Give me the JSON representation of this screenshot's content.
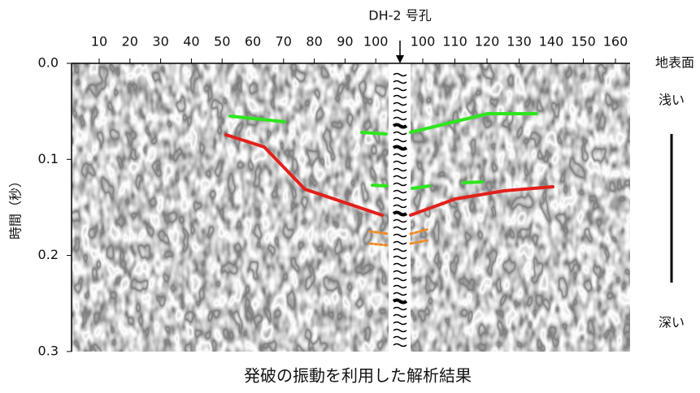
{
  "borehole_label": "DH-2 号孔",
  "x_ticks_left": [
    "10",
    "20",
    "30",
    "40",
    "50",
    "60",
    "70",
    "80",
    "90",
    "100"
  ],
  "x_ticks_right": [
    "100",
    "110",
    "120",
    "130",
    "140",
    "150",
    "160"
  ],
  "y_axis_label": "時間（秒）",
  "y_ticks": [
    "0.0",
    "0.1",
    "0.2",
    "0.3"
  ],
  "right_labels": {
    "surface": "地表面",
    "shallow": "浅い",
    "deep": "深い"
  },
  "caption": "発破の振動を利用した解析結果"
}
